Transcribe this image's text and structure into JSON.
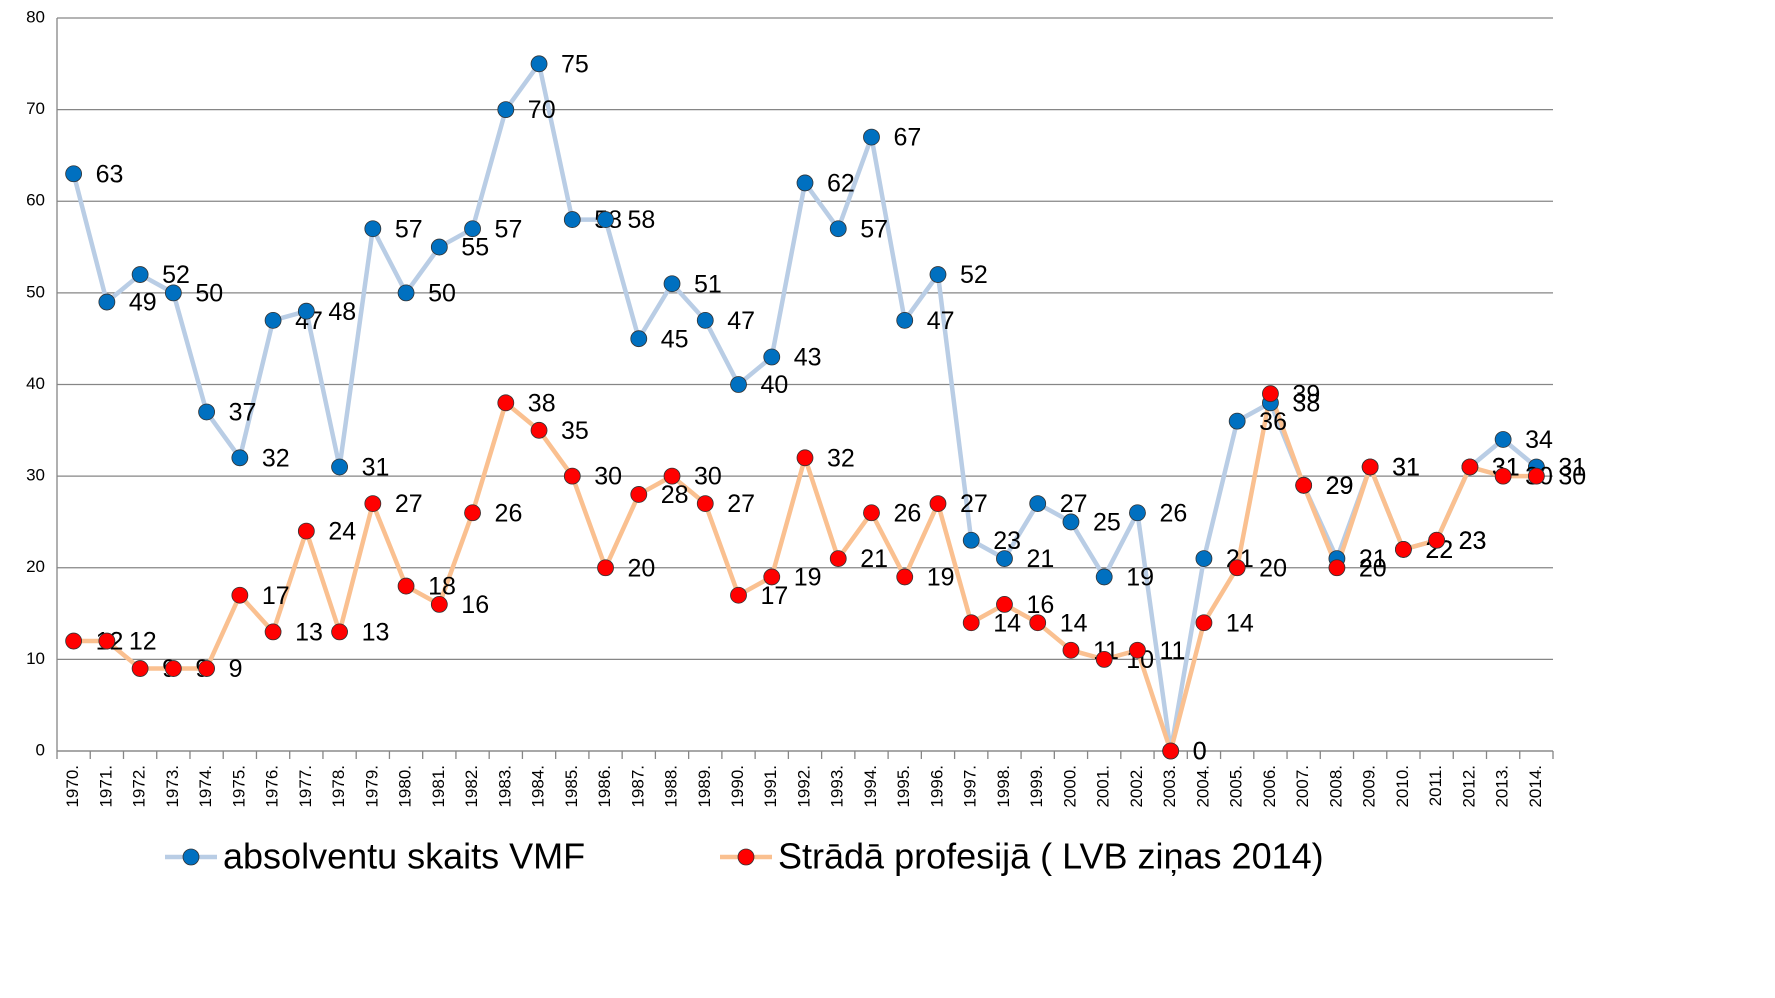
{
  "chart_data": {
    "type": "line",
    "categories": [
      "1970.",
      "1971.",
      "1972.",
      "1973.",
      "1974.",
      "1975.",
      "1976.",
      "1977.",
      "1978.",
      "1979.",
      "1980.",
      "1981.",
      "1982.",
      "1983.",
      "1984.",
      "1985.",
      "1986.",
      "1987.",
      "1988.",
      "1989.",
      "1990.",
      "1991.",
      "1992.",
      "1993.",
      "1994.",
      "1995.",
      "1996.",
      "1997.",
      "1998.",
      "1999.",
      "2000.",
      "2001.",
      "2002.",
      "2003.",
      "2004.",
      "2005.",
      "2006.",
      "2007.",
      "2008.",
      "2009.",
      "2010.",
      "2011.",
      "2012.",
      "2013.",
      "2014."
    ],
    "series": [
      {
        "name": "absolventu skaits VMF",
        "color": "#b9cde5",
        "marker_color": "#0070c0",
        "values": [
          63,
          49,
          52,
          50,
          37,
          32,
          47,
          48,
          31,
          57,
          50,
          55,
          57,
          70,
          75,
          58,
          58,
          45,
          51,
          47,
          40,
          43,
          62,
          57,
          67,
          47,
          52,
          23,
          21,
          27,
          25,
          19,
          26,
          0,
          21,
          36,
          38,
          29,
          21,
          31,
          22,
          23,
          31,
          34,
          31
        ]
      },
      {
        "name": "Strādā profesijā ( LVB ziņas 2014)",
        "color": "#fac090",
        "marker_color": "#ff0000",
        "values": [
          12,
          12,
          9,
          9,
          9,
          17,
          13,
          24,
          13,
          27,
          18,
          16,
          26,
          38,
          35,
          30,
          20,
          28,
          30,
          27,
          17,
          19,
          32,
          21,
          26,
          19,
          27,
          14,
          16,
          14,
          11,
          10,
          11,
          0,
          14,
          20,
          39,
          29,
          20,
          31,
          22,
          23,
          31,
          30,
          30
        ]
      }
    ],
    "ylim": [
      0,
      80
    ],
    "yticks": [
      0,
      10,
      20,
      30,
      40,
      50,
      60,
      70,
      80
    ],
    "grid": true,
    "legend": "bottom"
  }
}
